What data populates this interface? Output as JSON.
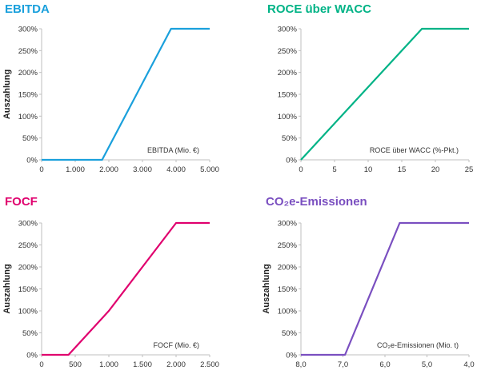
{
  "chart_data": [
    {
      "type": "line",
      "title": "EBITDA",
      "color": "#1aa0dc",
      "ylabel": "Auszahlung",
      "xlabel": "EBITDA (Mio. €)",
      "xlim": [
        0,
        5000
      ],
      "ylim": [
        0,
        300
      ],
      "x_ticks": [
        "0",
        "1.000",
        "2.000",
        "3.000",
        "4.000",
        "5.000"
      ],
      "y_ticks": [
        "0%",
        "50%",
        "100%",
        "150%",
        "200%",
        "250%",
        "300%"
      ],
      "x_reversed": false,
      "series": [
        {
          "x": [
            0,
            1800,
            3850,
            5000
          ],
          "y": [
            0,
            0,
            300,
            300
          ]
        }
      ]
    },
    {
      "type": "line",
      "title": "ROCE über WACC",
      "color": "#00b386",
      "ylabel": "",
      "xlabel": "ROCE über WACC (%-Pkt.)",
      "xlim": [
        0,
        25
      ],
      "ylim": [
        0,
        300
      ],
      "x_ticks": [
        "0",
        "5",
        "10",
        "15",
        "20",
        "25"
      ],
      "y_ticks": [
        "0%",
        "50%",
        "100%",
        "150%",
        "200%",
        "250%",
        "300%"
      ],
      "x_reversed": false,
      "series": [
        {
          "x": [
            0,
            18,
            25
          ],
          "y": [
            0,
            300,
            300
          ]
        }
      ]
    },
    {
      "type": "line",
      "title": "FOCF",
      "color": "#e0006e",
      "ylabel": "Auszahlung",
      "xlabel": "FOCF (Mio. €)",
      "xlim": [
        0,
        2500
      ],
      "ylim": [
        0,
        300
      ],
      "x_ticks": [
        "0",
        "500",
        "1.000",
        "1.500",
        "2.000",
        "2.500"
      ],
      "y_ticks": [
        "0%",
        "50%",
        "100%",
        "150%",
        "200%",
        "250%",
        "300%"
      ],
      "x_reversed": false,
      "series": [
        {
          "x": [
            0,
            400,
            1000,
            2000,
            2500
          ],
          "y": [
            0,
            0,
            100,
            300,
            300
          ]
        }
      ]
    },
    {
      "type": "line",
      "title": "CO₂e-Emissionen",
      "color": "#7a4fc0",
      "ylabel": "Auszahlung",
      "xlabel": "CO₂e-Emissionen (Mio. t)",
      "xlim": [
        8,
        4
      ],
      "ylim": [
        0,
        300
      ],
      "x_ticks": [
        "8,0",
        "7,0",
        "6,0",
        "5,0",
        "4,0"
      ],
      "y_ticks": [
        "0%",
        "50%",
        "100%",
        "150%",
        "200%",
        "250%",
        "300%"
      ],
      "x_reversed": true,
      "series": [
        {
          "x": [
            8,
            6.95,
            5.65,
            4
          ],
          "y": [
            0,
            0,
            300,
            300
          ]
        }
      ]
    }
  ]
}
